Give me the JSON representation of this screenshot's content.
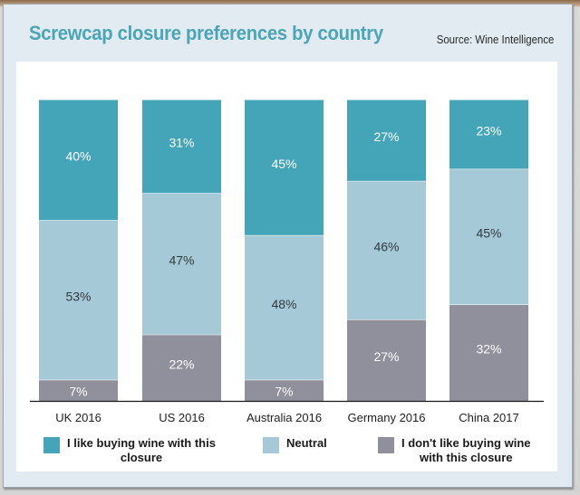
{
  "header": {
    "title": "Screwcap closure preferences by country",
    "source": "Source: Wine Intelligence"
  },
  "colors": {
    "like": "#44a4b8",
    "neutral": "#a5c9d6",
    "dislike": "#908f9c",
    "title": "#4aa5b8",
    "panel": "#e1ebf1"
  },
  "legend": [
    {
      "key": "like",
      "label_line1": "I like buying wine with this",
      "label_line2": "closure"
    },
    {
      "key": "neutral",
      "label_line1": "Neutral",
      "label_line2": ""
    },
    {
      "key": "dislike",
      "label_line1": "I don't like buying wine",
      "label_line2": "with this closure"
    }
  ],
  "chart_data": {
    "type": "bar",
    "stacked": true,
    "percent_stacked": true,
    "title": "Screwcap closure preferences by country",
    "source": "Source: Wine Intelligence",
    "categories": [
      "UK 2016",
      "US 2016",
      "Australia 2016",
      "Germany 2016",
      "China 2017"
    ],
    "series": [
      {
        "name": "I like buying wine with this closure",
        "key": "like",
        "values": [
          40,
          31,
          45,
          27,
          23
        ]
      },
      {
        "name": "Neutral",
        "key": "neutral",
        "values": [
          53,
          47,
          48,
          46,
          45
        ]
      },
      {
        "name": "I don't like buying wine with this closure",
        "key": "dislike",
        "values": [
          7,
          22,
          7,
          27,
          32
        ]
      }
    ],
    "value_labels": [
      [
        "40%",
        "31%",
        "45%",
        "27%",
        "23%"
      ],
      [
        "53%",
        "47%",
        "48%",
        "46%",
        "45%"
      ],
      [
        "7%",
        "22%",
        "7%",
        "27%",
        "32%"
      ]
    ],
    "xlabel": "",
    "ylabel": "",
    "ylim": [
      0,
      100
    ],
    "grid": false,
    "legend_position": "bottom"
  }
}
